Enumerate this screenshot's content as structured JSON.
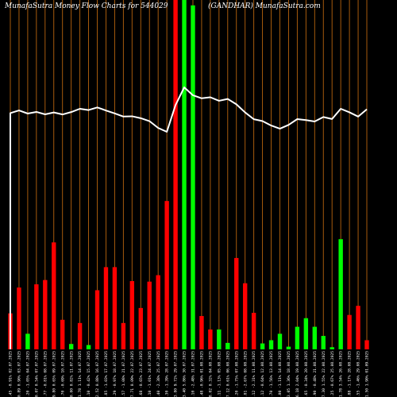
{
  "header": {
    "left": "MunafaSutra  Money Flow  Charts for 544029",
    "right": "(GANDHAR) MunafaSutra.com"
  },
  "colors": {
    "background": "#000000",
    "grid": "#b8640e",
    "up": "#00ff00",
    "down": "#ff0000",
    "line": "#ffffff",
    "text": "#ffffff"
  },
  "chart_data": {
    "type": "bar",
    "categories": [
      "01.09.2025",
      "29.08.2025",
      "28.08.2025",
      "26.08.2025",
      "25.08.2025",
      "22.08.2025",
      "21.08.2025",
      "20.08.2025",
      "19.08.2025",
      "18.08.2025",
      "14.08.2025",
      "13.08.2025",
      "12.08.2025",
      "11.08.2025",
      "08.08.2025",
      "07.08.2025",
      "06.08.2025",
      "05.08.2025",
      "04.08.2025",
      "01.08.2025",
      "31.07.2025",
      "30.07.2025",
      "29.07.2025",
      "28.07.2025",
      "25.07.2025",
      "24.07.2025",
      "23.07.2025",
      "22.07.2025",
      "21.07.2025",
      "18.07.2025",
      "17.07.2025",
      "16.07.2025",
      "15.07.2025",
      "14.07.2025",
      "11.07.2025",
      "10.07.2025",
      "09.07.2025",
      "08.07.2025",
      "07.07.2025",
      "04.07.2025",
      "03.07.2025",
      "02.07.2025"
    ],
    "tick_labels": [
      "161.50 1.90% 01.09.2025",
      "157.55 -1.46% 29.08.2025",
      "159.88 -1.17% 28.08.2025",
      "161.78 3.54% 26.08.2025",
      "156.25 -0.67% 25.08.2025",
      "157.30 1.55% 22.08.2025",
      "154.90 -0.48% 21.08.2025",
      "155.65 -0.34% 20.08.2025",
      "156.18 2.04% 19.08.2025",
      "153.05 1.36% 18.08.2025",
      "151.00 -1.11% 14.08.2025",
      "152.70 -1.56% 13.08.2025",
      "155.12 -0.64% 12.08.2025",
      "156.12 -2.31% 11.08.2025",
      "159.81 -2.67% 08.08.2025",
      "164.20 -1.75% 07.08.2025",
      "167.12 0.61% 06.08.2025",
      "166.11 -1.13% 05.08.2025",
      "168.02 0.32% 04.08.2025",
      "167.48 -0.96% 01.08.2025",
      "169.10 -2.48% 31.07.2025",
      "173.40 5.86% 30.07.2025",
      "163.80 9.72% 29.07.2025",
      "149.30 -1.39% 28.07.2025",
      "151.40 -2.38% 25.07.2025",
      "155.10 -1.01% 24.07.2025",
      "156.68 -0.65% 23.07.2025",
      "157.71 0.09% 22.07.2025",
      "157.57 -1.08% 21.07.2025",
      "159.29 -0.97% 18.07.2025",
      "160.85 -1.03% 17.07.2025",
      "162.52 0.88% 16.07.2025",
      "161.10 -0.42% 15.07.2025",
      "161.78 1.11% 14.07.2025",
      "160.00 0.82% 11.07.2025",
      "158.70 -0.69% 10.07.2025",
      "159.80 0.65% 09.07.2025",
      "158.77 -0.81% 08.07.2025",
      "160.07 0.54% 07.07.2025",
      "159.20 -1.05% 04.07.2025",
      "160.89 0.90% 03.07.2025",
      "159.45 -0.91% 02.07.2025"
    ],
    "series": [
      {
        "values": [
          17,
          81,
          64,
          205,
          4,
          25,
          42,
          58,
          42,
          5,
          29,
          17,
          11,
          68,
          123,
          170,
          12,
          37,
          37,
          62,
          640,
          650,
          650,
          276,
          138,
          126,
          77,
          127,
          49,
          153,
          153,
          110,
          8,
          49,
          10,
          55,
          199,
          129,
          121,
          29,
          115,
          67
        ],
        "direction": [
          "down",
          "down",
          "down",
          "up",
          "up",
          "up",
          "up",
          "up",
          "up",
          "up",
          "up",
          "up",
          "up",
          "down",
          "down",
          "down",
          "up",
          "up",
          "down",
          "down",
          "up",
          "up",
          "down",
          "down",
          "down",
          "down",
          "down",
          "down",
          "down",
          "down",
          "down",
          "down",
          "up",
          "down",
          "up",
          "down",
          "down",
          "down",
          "down",
          "up",
          "down",
          "down"
        ]
      },
      {
        "type": "line",
        "values": [
          161.5,
          157.55,
          159.88,
          161.78,
          156.25,
          157.3,
          154.9,
          155.65,
          156.18,
          153.05,
          151.0,
          152.7,
          155.12,
          156.12,
          159.81,
          164.2,
          167.12,
          166.11,
          168.02,
          167.48,
          169.1,
          173.4,
          163.8,
          149.3,
          151.4,
          155.1,
          156.68,
          157.71,
          157.57,
          159.29,
          160.85,
          162.52,
          161.1,
          161.78,
          160.0,
          158.7,
          159.8,
          158.77,
          160.07,
          159.2,
          160.89,
          159.45
        ]
      }
    ],
    "order": "newest-first"
  }
}
